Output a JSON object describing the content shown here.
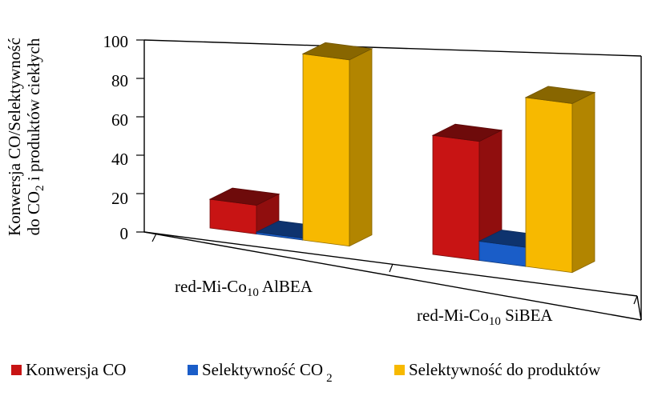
{
  "chart_data": {
    "type": "bar",
    "ylabel_line1": "Konwersja CO/Selektywność",
    "ylabel_line2_pre": "do CO",
    "ylabel_line2_sub": "2",
    "ylabel_line2_post": " i produktów ciekłych",
    "ylim": [
      0,
      100
    ],
    "yticks": [
      "100",
      "80",
      "60",
      "40",
      "20",
      "0"
    ],
    "categories": [
      {
        "pre": "red-Mi-Co",
        "sub": "10",
        "post": " AlBEA"
      },
      {
        "pre": "red-Mi-Co",
        "sub": "10",
        "post": " SiBEA"
      }
    ],
    "series": [
      {
        "name": "Konwersja CO",
        "values": [
          15,
          62
        ],
        "color": "#c81414"
      },
      {
        "name_pre": "Selektywność CO",
        "name_sub": "2",
        "values": [
          1,
          10
        ],
        "color": "#1a5dc8"
      },
      {
        "name": "Selektywność do produktów",
        "values": [
          97,
          88
        ],
        "color": "#f7b900"
      }
    ],
    "legend_position": "bottom",
    "grid": false
  }
}
